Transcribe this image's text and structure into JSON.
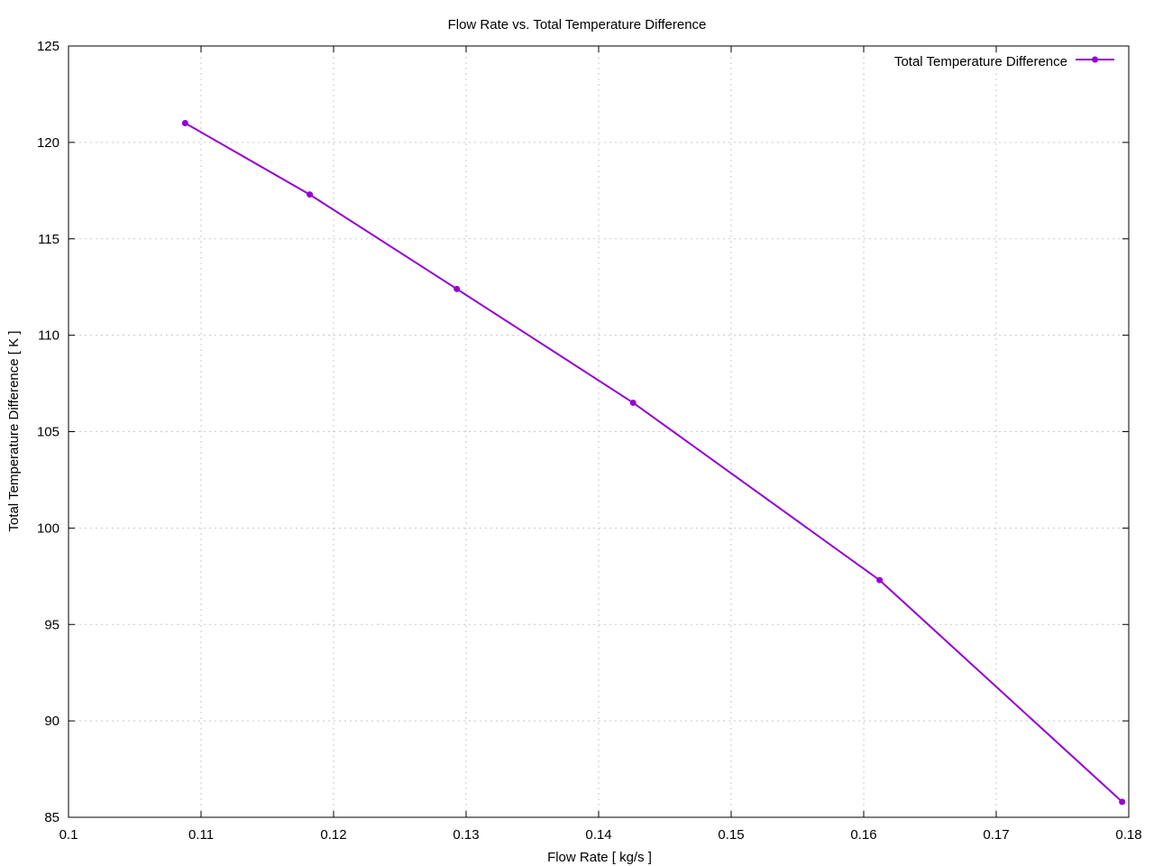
{
  "chart_data": {
    "type": "line",
    "title": "Flow Rate vs. Total Temperature Difference",
    "xlabel": "Flow Rate [ kg/s ]",
    "ylabel": "Total Temperature Difference [ K ]",
    "xlim": [
      0.1,
      0.18
    ],
    "ylim": [
      85,
      125
    ],
    "xticks": [
      "0.1",
      "0.11",
      "0.12",
      "0.13",
      "0.14",
      "0.15",
      "0.16",
      "0.17",
      "0.18"
    ],
    "yticks": [
      "85",
      "90",
      "95",
      "100",
      "105",
      "110",
      "115",
      "120",
      "125"
    ],
    "grid": true,
    "legend_position": "top-right",
    "series": [
      {
        "name": "Total Temperature Difference",
        "color": "#9400D3",
        "x": [
          0.1088,
          0.1182,
          0.1293,
          0.1426,
          0.1612,
          0.1795
        ],
        "y": [
          121.0,
          117.3,
          112.4,
          106.5,
          97.3,
          85.8
        ]
      }
    ]
  }
}
